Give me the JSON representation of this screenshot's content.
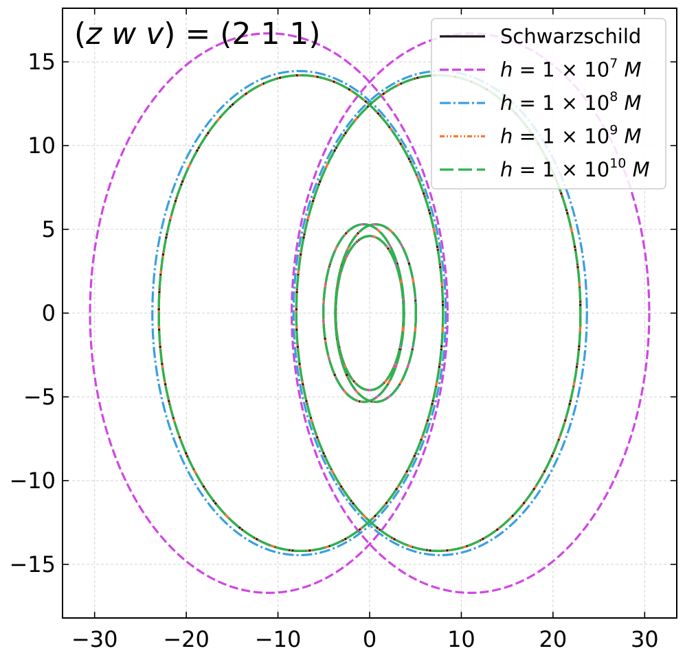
{
  "chart_data": {
    "type": "line",
    "title": "(z w v) = (2 1 1)",
    "title_parts": {
      "open": "(",
      "vars": [
        "z",
        "w",
        "v"
      ],
      "close": ")",
      "equals": " = ",
      "value": "(2 1 1)"
    },
    "xlabel": "",
    "ylabel": "",
    "xlim": [
      -33.5,
      33.5
    ],
    "ylim": [
      -18.2,
      18.2
    ],
    "x_ticks": [
      -30,
      -20,
      -10,
      0,
      10,
      20,
      30
    ],
    "y_ticks": [
      -15,
      -10,
      -5,
      0,
      5,
      10,
      15
    ],
    "grid": true,
    "legend_position": "top-right",
    "series": [
      {
        "name": "Schwarzschild",
        "label": {
          "plain": "Schwarzschild"
        },
        "color": "#1a1a1a",
        "dash": "solid",
        "orbit": {
          "outer_lobe": {
            "cx": 7.5,
            "rx": 15.5,
            "ry": 14.2
          },
          "inner_lobe": {
            "cx": 0.0,
            "rx": 4.7,
            "ry": 5.3
          },
          "inner_spacing_y": 0.65
        }
      },
      {
        "name": "h = 1×10^7 M",
        "label": {
          "pre": "h = 1 × 10",
          "exp": "7",
          "post": "M"
        },
        "color": "#d046e3",
        "dash": "dashed",
        "orbit": {
          "outer_lobe": {
            "cx": 11.0,
            "rx": 19.5,
            "ry": 16.7
          },
          "inner_lobe": {
            "cx": 0.0,
            "rx": 4.7,
            "ry": 5.3
          },
          "inner_spacing_y": 0.65
        }
      },
      {
        "name": "h = 1×10^8 M",
        "label": {
          "pre": "h = 1 × 10",
          "exp": "8",
          "post": "M"
        },
        "color": "#3a9fdf",
        "dash": "dashdot",
        "orbit": {
          "outer_lobe": {
            "cx": 7.7,
            "rx": 16.0,
            "ry": 14.45
          },
          "inner_lobe": {
            "cx": 0.0,
            "rx": 4.7,
            "ry": 5.3
          },
          "inner_spacing_y": 0.65
        }
      },
      {
        "name": "h = 1×10^9 M",
        "label": {
          "pre": "h = 1 × 10",
          "exp": "9",
          "post": "M"
        },
        "color": "#f57a32",
        "dash": "dashdotdot",
        "orbit": {
          "outer_lobe": {
            "cx": 7.5,
            "rx": 15.5,
            "ry": 14.2
          },
          "inner_lobe": {
            "cx": 0.0,
            "rx": 4.7,
            "ry": 5.3
          },
          "inner_spacing_y": 0.65
        }
      },
      {
        "name": "h = 1×10^10 M",
        "label": {
          "pre": "h = 1 × 10",
          "exp": "10",
          "post": "M"
        },
        "color": "#2eb34d",
        "dash": "longdash",
        "orbit": {
          "outer_lobe": {
            "cx": 7.5,
            "rx": 15.5,
            "ry": 14.2
          },
          "inner_lobe": {
            "cx": 0.0,
            "rx": 4.7,
            "ry": 5.3
          },
          "inner_spacing_y": 0.65
        }
      }
    ]
  }
}
